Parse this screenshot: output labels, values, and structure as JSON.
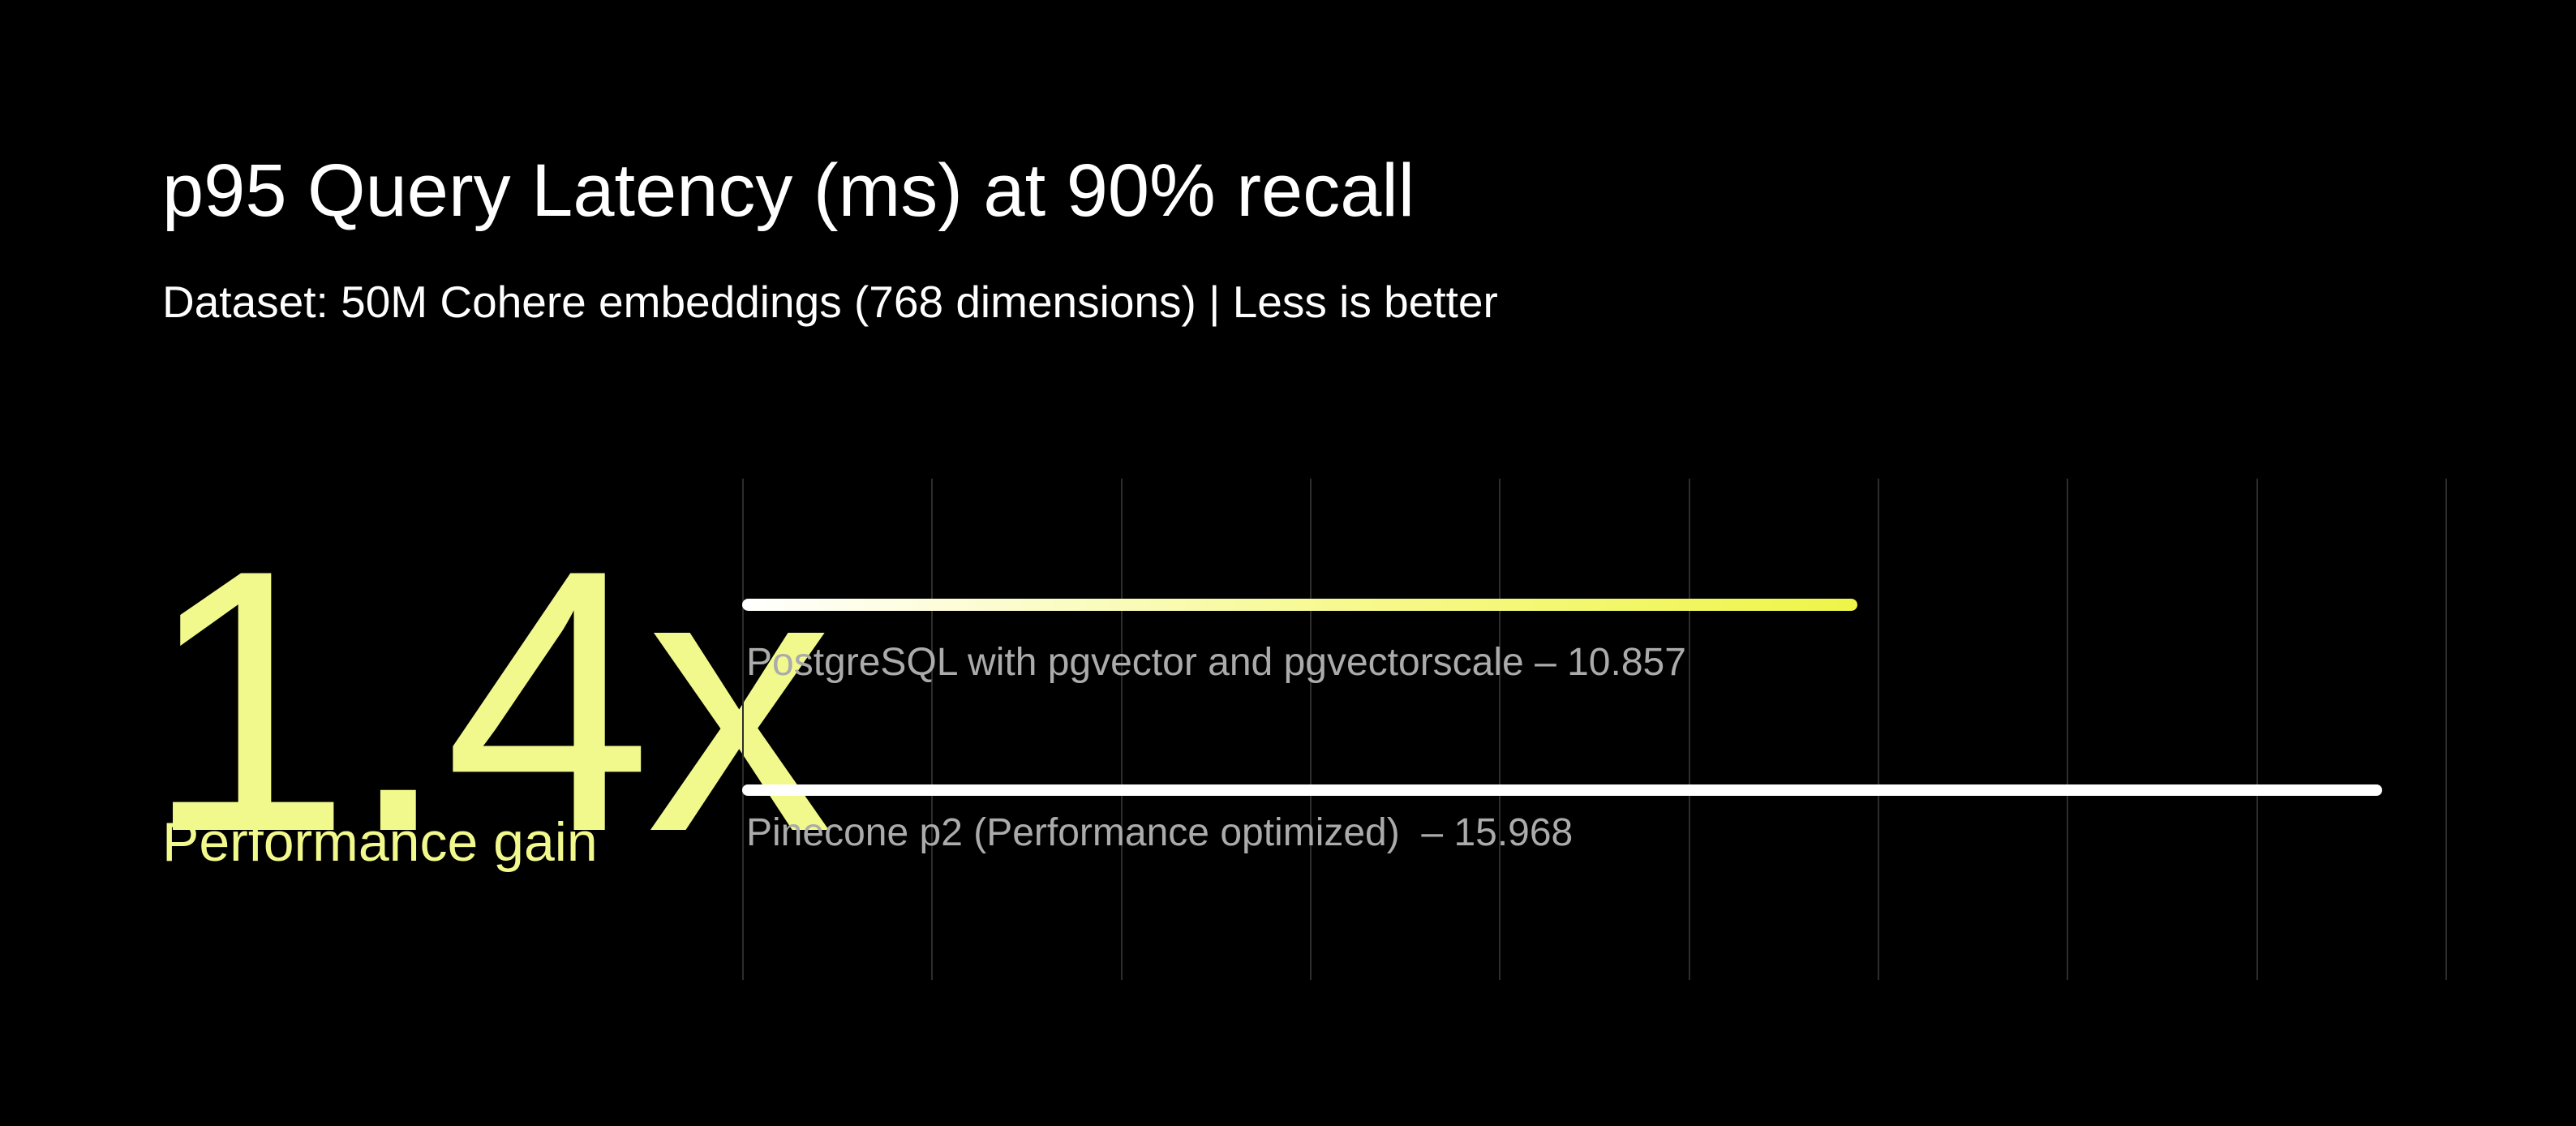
{
  "header": {
    "title": "p95 Query Latency (ms) at 90% recall",
    "subtitle": "Dataset: 50M Cohere embeddings (768 dimensions) | Less is better"
  },
  "stat": {
    "value": "1.4x",
    "label": "Performance gain"
  },
  "colors": {
    "background": "#000000",
    "title_text": "#ffffff",
    "accent_yellow": "#f2f98c",
    "bar_yellow_end": "#eef548",
    "bar_gradient_start": "#ffffff",
    "bar_white": "#ffffff",
    "gridline": "#2d2d2d",
    "bar_label_gray": "#ababab"
  },
  "chart_data": {
    "type": "bar",
    "orientation": "horizontal",
    "title": "p95 Query Latency (ms) at 90% recall",
    "subtitle": "Dataset: 50M Cohere embeddings (768 dimensions) | Less is better",
    "unit": "ms",
    "less_is_better": true,
    "categories": [
      "PostgreSQL with pgvector and pgvectorscale",
      "Pinecone p2 (Performance optimized)"
    ],
    "values": [
      10.857,
      15.968
    ],
    "series": [
      {
        "name": "PostgreSQL with pgvector and pgvectorscale",
        "value": 10.857,
        "label": "PostgreSQL with pgvector and pgvectorscale – 10.857",
        "color_style": "white-to-yellow-gradient"
      },
      {
        "name": "Pinecone p2 (Performance optimized)",
        "value": 15.968,
        "label": "Pinecone p2 (Performance optimized)  – 15.968",
        "color_style": "white"
      }
    ],
    "performance_gain": "1.4x",
    "axis_max": 16.6,
    "grid": {
      "vertical_lines": 10,
      "visible": true
    },
    "legend_position": "none",
    "value_labels": "inline-after-category-name"
  }
}
